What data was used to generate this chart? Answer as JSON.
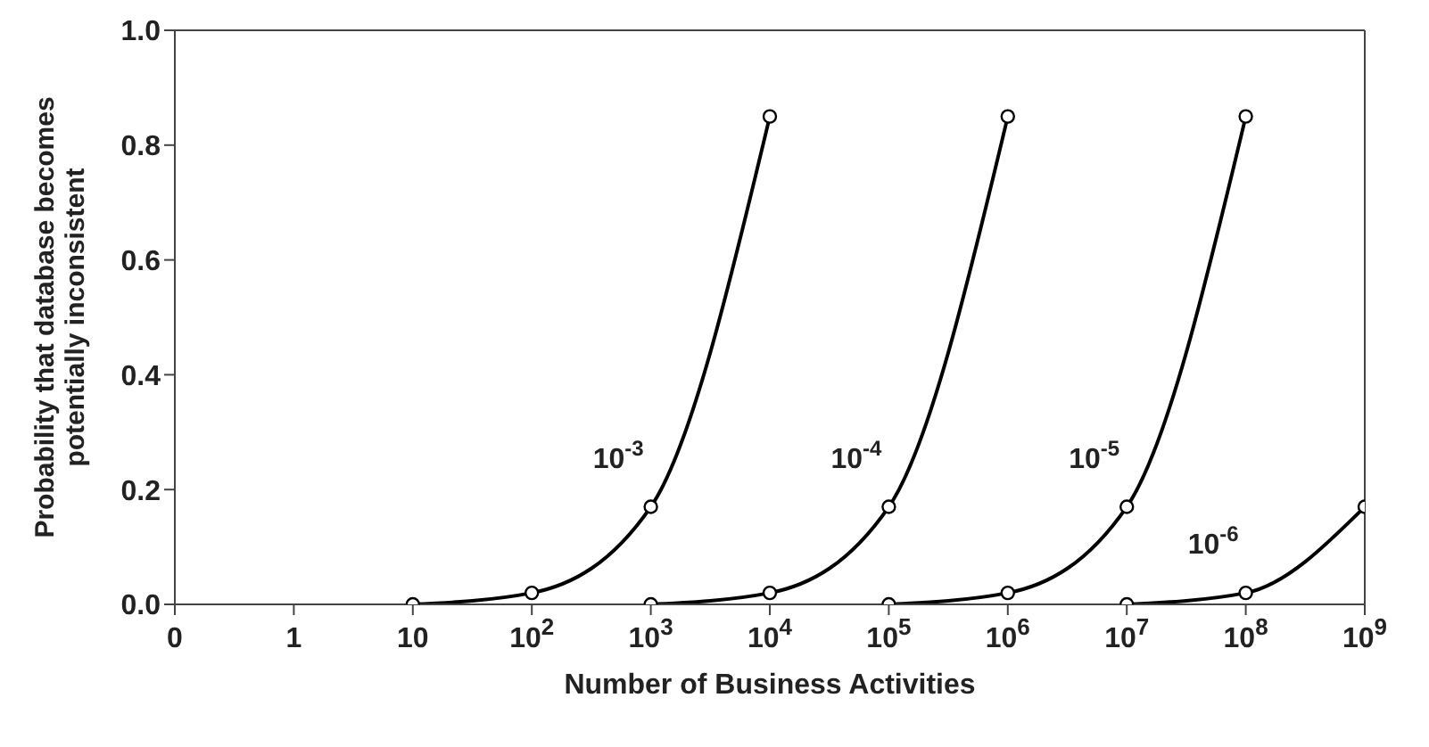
{
  "chart_data": {
    "type": "line",
    "xlabel": "Number of Business Activities",
    "ylabel": "Probability that database becomes potentially inconsistent",
    "categories": [
      "0",
      "1",
      "10",
      "10$^{2}$",
      "10$^{3}$",
      "10$^{4}$",
      "10$^{5}$",
      "10$^{6}$",
      "10$^{7}$",
      "10$^{8}$",
      "10$^{9}$"
    ],
    "series": [
      {
        "name": "10$^{-3}$",
        "color": "#000000",
        "values": [
          null,
          null,
          0,
          0.02,
          0.17,
          0.85,
          null,
          null,
          null,
          null,
          null
        ]
      },
      {
        "name": "10$^{-4}$",
        "color": "#000000",
        "values": [
          null,
          null,
          null,
          null,
          0,
          0.02,
          0.17,
          0.85,
          null,
          null,
          null
        ]
      },
      {
        "name": "10$^{-5}$",
        "color": "#000000",
        "values": [
          null,
          null,
          null,
          null,
          null,
          null,
          0,
          0.02,
          0.17,
          0.85,
          null
        ]
      },
      {
        "name": "10$^{-6}$",
        "color": "#000000",
        "values": [
          null,
          null,
          null,
          null,
          null,
          null,
          null,
          null,
          0,
          0.02,
          0.17
        ]
      }
    ],
    "ylim": [
      0,
      1
    ],
    "yticks": [
      {
        "value": 0,
        "label": "0.0"
      },
      {
        "value": 0.2,
        "label": "0.2"
      },
      {
        "value": 0.4,
        "label": "0.4"
      },
      {
        "value": 0.6,
        "label": "0.6"
      },
      {
        "value": 0.8,
        "label": "0.8"
      },
      {
        "value": 1,
        "label": "1.0"
      }
    ],
    "grid": false,
    "legend": false,
    "marker": "circle",
    "line_style": "solid"
  }
}
